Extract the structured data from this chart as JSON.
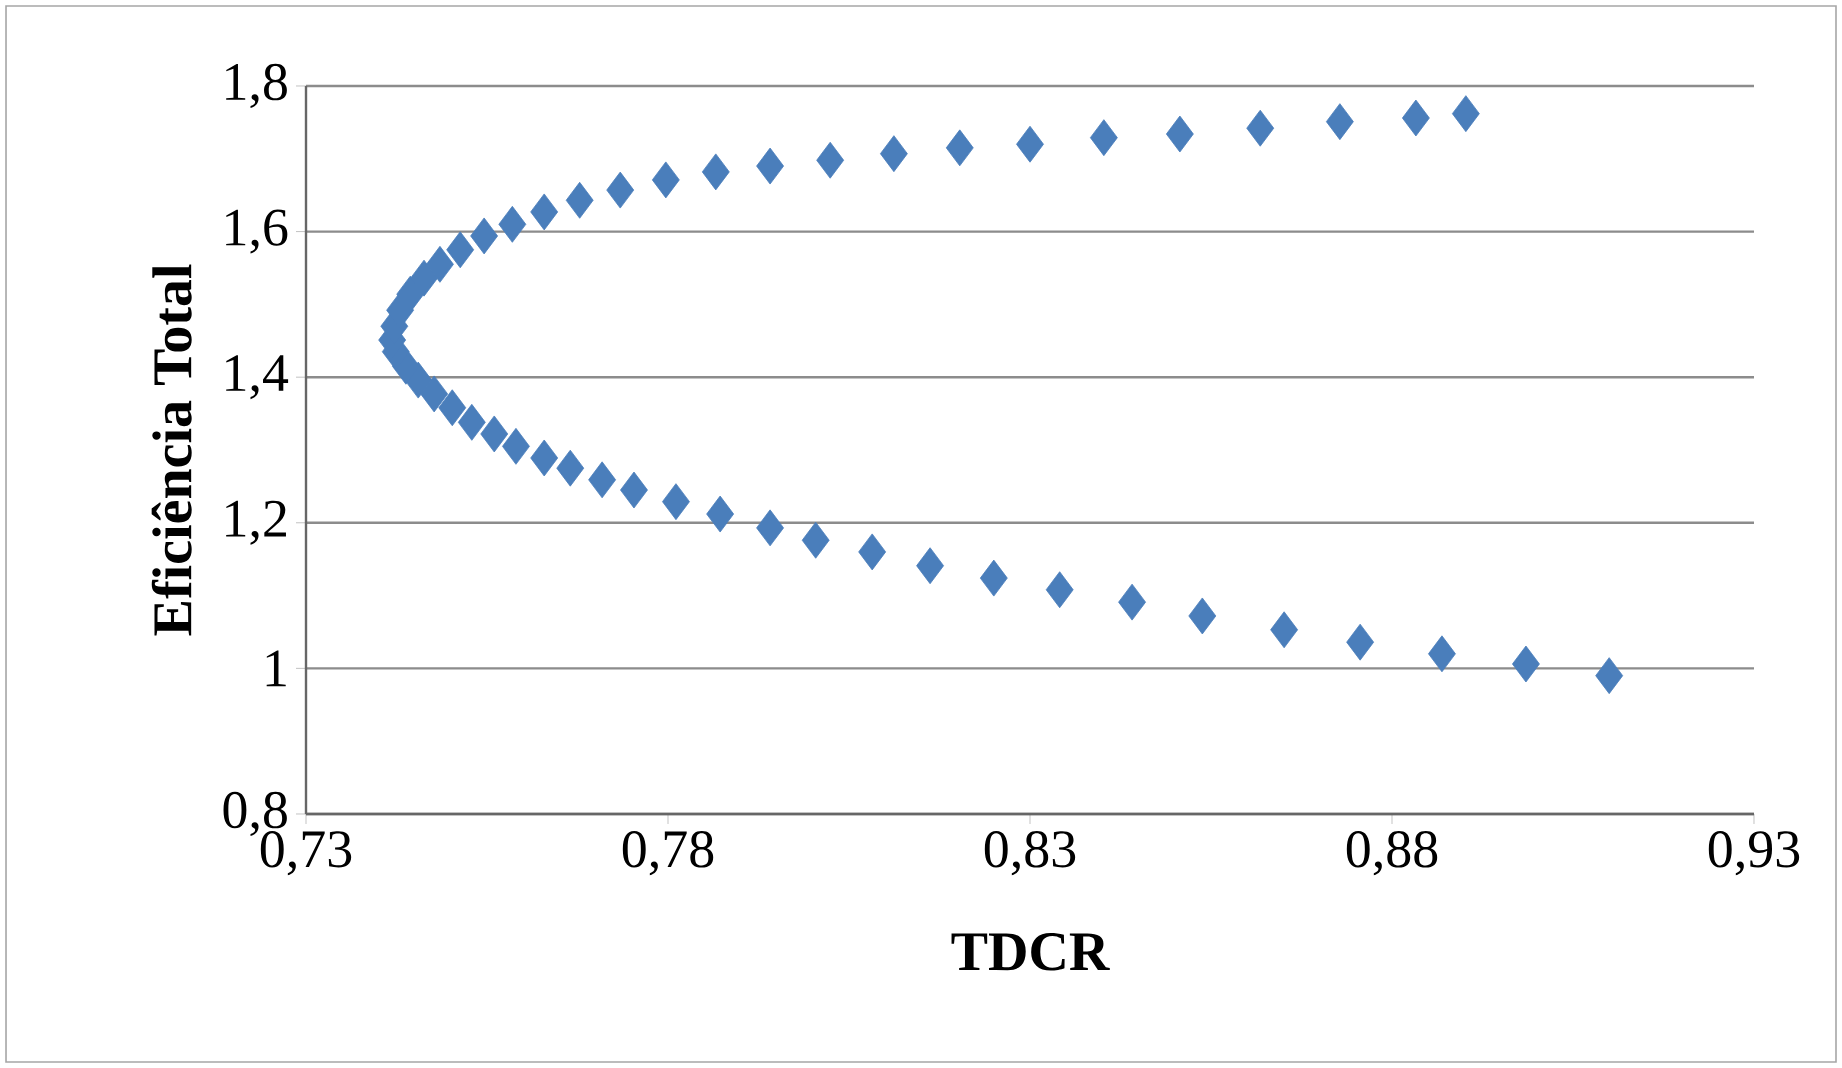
{
  "chart_data": {
    "type": "scatter",
    "xlabel": "TDCR",
    "ylabel": "Eficiência Total",
    "xlim": [
      0.73,
      0.93
    ],
    "ylim": [
      0.8,
      1.8
    ],
    "xticks": [
      {
        "value": 0.73,
        "label": "0,73"
      },
      {
        "value": 0.78,
        "label": "0,78"
      },
      {
        "value": 0.83,
        "label": "0,83"
      },
      {
        "value": 0.88,
        "label": "0,88"
      },
      {
        "value": 0.93,
        "label": "0,93"
      }
    ],
    "yticks": [
      {
        "value": 0.8,
        "label": "0,8"
      },
      {
        "value": 1,
        "label": "1"
      },
      {
        "value": 1.2,
        "label": "1,2"
      },
      {
        "value": 1.4,
        "label": "1,4"
      },
      {
        "value": 1.6,
        "label": "1,6"
      },
      {
        "value": 1.8,
        "label": "1,8"
      }
    ],
    "grid": "y",
    "marker": "diamond",
    "series": [
      {
        "color": "#4a7ebb",
        "x": [
          0.91,
          0.8985,
          0.8869,
          0.8756,
          0.8651,
          0.8538,
          0.8441,
          0.8341,
          0.825,
          0.8162,
          0.8082,
          0.8004,
          0.7941,
          0.7872,
          0.7811,
          0.7753,
          0.7709,
          0.7665,
          0.7629,
          0.759,
          0.756,
          0.7529,
          0.7502,
          0.7477,
          0.7455,
          0.7438,
          0.7424,
          0.7419,
          0.7422,
          0.743,
          0.7444,
          0.7463,
          0.7485,
          0.7513,
          0.7546,
          0.7585,
          0.7629,
          0.7678,
          0.7734,
          0.7797,
          0.7866,
          0.7941,
          0.8024,
          0.8112,
          0.8203,
          0.83,
          0.8402,
          0.8507,
          0.8618,
          0.8728,
          0.8833,
          0.8902
        ],
        "values": [
          0.99,
          1.006,
          1.02,
          1.036,
          1.053,
          1.072,
          1.091,
          1.108,
          1.124,
          1.141,
          1.16,
          1.176,
          1.193,
          1.212,
          1.229,
          1.245,
          1.259,
          1.275,
          1.289,
          1.305,
          1.322,
          1.338,
          1.358,
          1.377,
          1.396,
          1.415,
          1.435,
          1.451,
          1.47,
          1.492,
          1.514,
          1.536,
          1.555,
          1.575,
          1.594,
          1.61,
          1.627,
          1.643,
          1.657,
          1.671,
          1.682,
          1.69,
          1.698,
          1.707,
          1.715,
          1.72,
          1.729,
          1.734,
          1.742,
          1.751,
          1.756,
          1.762
        ]
      }
    ]
  }
}
